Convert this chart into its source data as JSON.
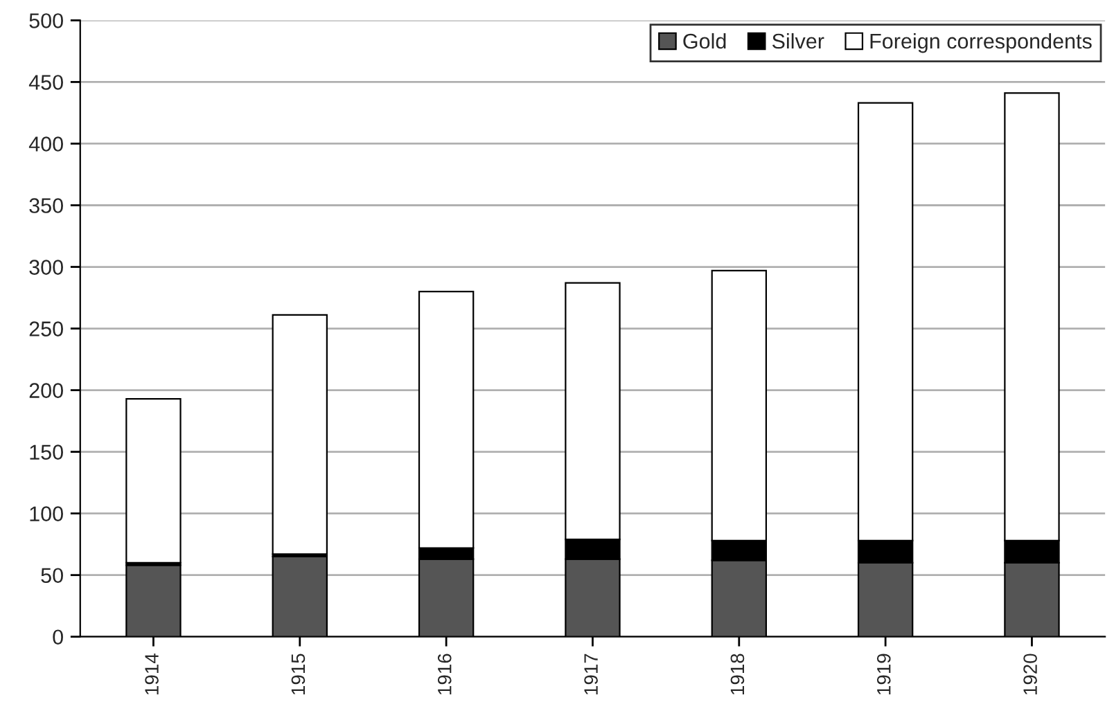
{
  "chart_data": {
    "type": "bar",
    "stacked": true,
    "categories": [
      "1914",
      "1915",
      "1916",
      "1917",
      "1918",
      "1919",
      "1920"
    ],
    "series": [
      {
        "name": "Gold",
        "color": "#555555",
        "values": [
          58,
          65,
          63,
          63,
          62,
          60,
          60
        ]
      },
      {
        "name": "Silver",
        "color": "#000000",
        "values": [
          2,
          2,
          9,
          16,
          16,
          18,
          18
        ]
      },
      {
        "name": "Foreign correspondents",
        "color": "#ffffff",
        "values": [
          133,
          194,
          208,
          208,
          219,
          355,
          363
        ]
      }
    ],
    "ylim": [
      0,
      500
    ],
    "yticks": [
      0,
      50,
      100,
      150,
      200,
      250,
      300,
      350,
      400,
      450,
      500
    ],
    "grid": "y",
    "legend": "top right"
  }
}
